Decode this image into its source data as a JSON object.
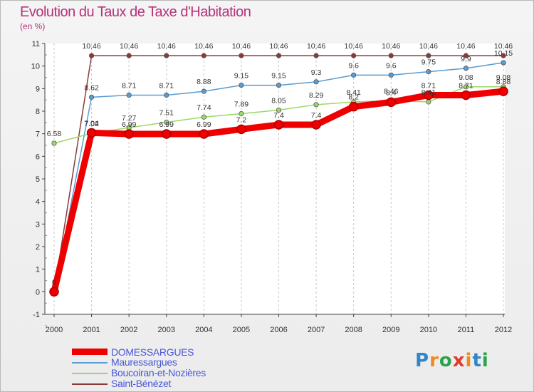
{
  "header": {
    "title": "Evolution du Taux de Taxe d'Habitation",
    "subtitle": "(en %)"
  },
  "logo": {
    "text": "Proxiti",
    "letters": [
      "P",
      "r",
      "o",
      "x",
      "i",
      "t",
      "i"
    ],
    "colors": [
      "#2f86c9",
      "#f08a1c",
      "#2aa34a",
      "#e23b2e",
      "#f08a1c",
      "#2f86c9",
      "#2aa34a"
    ]
  },
  "chart_data": {
    "type": "line",
    "title": "Evolution du Taux de Taxe d'Habitation",
    "ylabel": "(en %)",
    "xlabel": "",
    "x": [
      2000,
      2001,
      2002,
      2003,
      2004,
      2005,
      2006,
      2007,
      2008,
      2009,
      2010,
      2011,
      2012
    ],
    "x_tick_labels": [
      "2000",
      "2001",
      "2002",
      "2003",
      "2004",
      "2005",
      "2006",
      "2007",
      "2008",
      "2009",
      "2010",
      "2011",
      "2012"
    ],
    "ylim": [
      -1,
      11
    ],
    "y_ticks": [
      -1,
      0,
      1,
      2,
      3,
      4,
      5,
      6,
      7,
      8,
      9,
      10,
      11
    ],
    "y_tick_labels": [
      "-1",
      "0",
      "1",
      "2",
      "3",
      "4",
      "5",
      "6",
      "7",
      "8",
      "9",
      "10",
      "11"
    ],
    "grid": "vertical dashed",
    "legend_position": "bottom-left",
    "series": [
      {
        "name": "DOMESSARGUES",
        "color": "#ee0000",
        "values": [
          0,
          7.04,
          6.99,
          6.99,
          6.99,
          7.2,
          7.4,
          7.4,
          8.2,
          8.4,
          8.71,
          8.71,
          8.88
        ],
        "labels": [
          "0",
          "7.04",
          "6.99",
          "6.99",
          "6.99",
          "7.2",
          "7.4",
          "7.4",
          "8.2",
          "8.4",
          "8.71",
          "8.71",
          "8.88"
        ]
      },
      {
        "name": "Mauressargues",
        "color": "#5b9bd0",
        "values": [
          0,
          8.62,
          8.71,
          8.71,
          8.88,
          9.15,
          9.15,
          9.3,
          9.6,
          9.6,
          9.75,
          9.9,
          10.15
        ],
        "labels": [
          "0",
          "8.62",
          "8.71",
          "8.71",
          "8.88",
          "9.15",
          "9.15",
          "9.3",
          "9.6",
          "9.6",
          "9.75",
          "9.9",
          "10.15"
        ]
      },
      {
        "name": "Boucoiran-et-Nozières",
        "color": "#99d966",
        "values": [
          6.58,
          7.02,
          7.27,
          7.51,
          7.74,
          7.89,
          8.05,
          8.29,
          8.41,
          8.46,
          8.41,
          9.08,
          9.08
        ],
        "labels": [
          "6.58",
          "7.02",
          "7.27",
          "7.51",
          "7.74",
          "7.89",
          "8.05",
          "8.29",
          "8.41",
          "8.46",
          "8.41",
          "9.08",
          "9.08"
        ]
      },
      {
        "name": "Saint-Bénézet",
        "color": "#8b3a3a",
        "values": [
          0,
          10.46,
          10.46,
          10.46,
          10.46,
          10.46,
          10.46,
          10.46,
          10.46,
          10.46,
          10.46,
          10.46,
          10.46
        ],
        "labels": [
          "0",
          "10.46",
          "10.46",
          "10.46",
          "10.46",
          "10.46",
          "10.46",
          "10.46",
          "10.46",
          "10.46",
          "10.46",
          "10.46",
          "10.46"
        ]
      }
    ]
  }
}
